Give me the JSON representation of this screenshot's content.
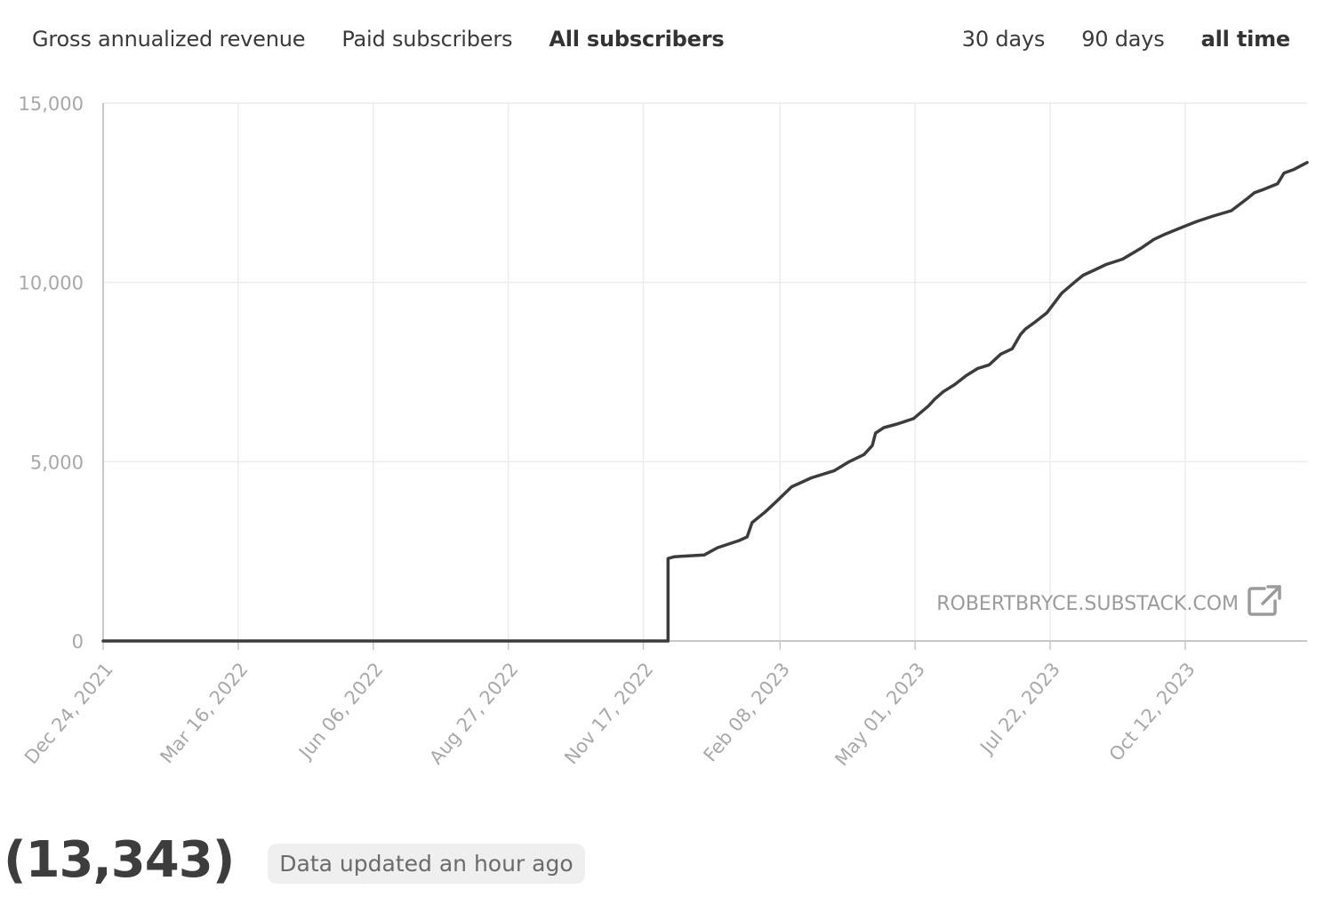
{
  "metric_tabs": [
    {
      "label": "Gross annualized revenue",
      "active": false
    },
    {
      "label": "Paid subscribers",
      "active": false
    },
    {
      "label": "All subscribers",
      "active": true
    }
  ],
  "range_tabs": [
    {
      "label": "30 days",
      "active": false
    },
    {
      "label": "90 days",
      "active": false
    },
    {
      "label": "all time",
      "active": true
    }
  ],
  "watermark": {
    "text": "ROBERTBRYCE.SUBSTACK.COM",
    "icon": "external-link-icon"
  },
  "footer": {
    "total": "(13,343)",
    "updated": "Data updated an hour ago"
  },
  "colors": {
    "line": "#3c3c3c",
    "grid": "#ececec",
    "axis": "#c8c8c8",
    "tick_text": "#a8a8a8",
    "watermark": "#9b9b9b"
  },
  "chart_data": {
    "type": "line",
    "title": "",
    "xlabel": "",
    "ylabel": "",
    "ylim": [
      0,
      15000
    ],
    "xlim": [
      "2021-12-24",
      "2023-12-25"
    ],
    "y_ticks": [
      0,
      5000,
      10000,
      15000
    ],
    "y_tick_labels": [
      "0",
      "5,000",
      "10,000",
      "15,000"
    ],
    "x_ticks": [
      "2021-12-24",
      "2022-03-16",
      "2022-06-06",
      "2022-08-27",
      "2022-11-17",
      "2023-02-08",
      "2023-05-01",
      "2023-07-22",
      "2023-10-12"
    ],
    "x_tick_labels": [
      "Dec 24, 2021",
      "Mar 16, 2022",
      "Jun 06, 2022",
      "Aug 27, 2022",
      "Nov 17, 2022",
      "Feb 08, 2023",
      "May 01, 2023",
      "Jul 22, 2023",
      "Oct 12, 2023"
    ],
    "grid": true,
    "series": [
      {
        "x": [
          "2021-12-24",
          "2022-12-02",
          "2022-12-02",
          "2022-12-06",
          "2022-12-24",
          "2023-01-01",
          "2023-01-14",
          "2023-01-19",
          "2023-01-22",
          "2023-01-30",
          "2023-02-06",
          "2023-02-15",
          "2023-02-27",
          "2023-03-13",
          "2023-03-22",
          "2023-03-31",
          "2023-04-05",
          "2023-04-07",
          "2023-04-12",
          "2023-04-20",
          "2023-04-30",
          "2023-05-09",
          "2023-05-13",
          "2023-05-18",
          "2023-05-25",
          "2023-06-01",
          "2023-06-08",
          "2023-06-15",
          "2023-06-22",
          "2023-06-29",
          "2023-07-04",
          "2023-07-07",
          "2023-07-13",
          "2023-07-20",
          "2023-07-29",
          "2023-08-07",
          "2023-08-11",
          "2023-08-18",
          "2023-08-25",
          "2023-09-04",
          "2023-09-15",
          "2023-09-23",
          "2023-09-30",
          "2023-10-08",
          "2023-10-19",
          "2023-10-29",
          "2023-11-09",
          "2023-11-19",
          "2023-11-23",
          "2023-11-29",
          "2023-12-07",
          "2023-12-11",
          "2023-12-17",
          "2023-12-25"
        ],
        "y": [
          0,
          0,
          2300,
          2350,
          2400,
          2600,
          2800,
          2900,
          3300,
          3600,
          3900,
          4300,
          4550,
          4750,
          5000,
          5200,
          5450,
          5800,
          5950,
          6050,
          6200,
          6550,
          6750,
          6950,
          7150,
          7400,
          7600,
          7700,
          8000,
          8150,
          8550,
          8700,
          8900,
          9150,
          9700,
          10050,
          10200,
          10350,
          10500,
          10650,
          10950,
          11200,
          11350,
          11500,
          11700,
          11850,
          12000,
          12350,
          12500,
          12600,
          12750,
          13050,
          13150,
          13343
        ]
      }
    ]
  }
}
